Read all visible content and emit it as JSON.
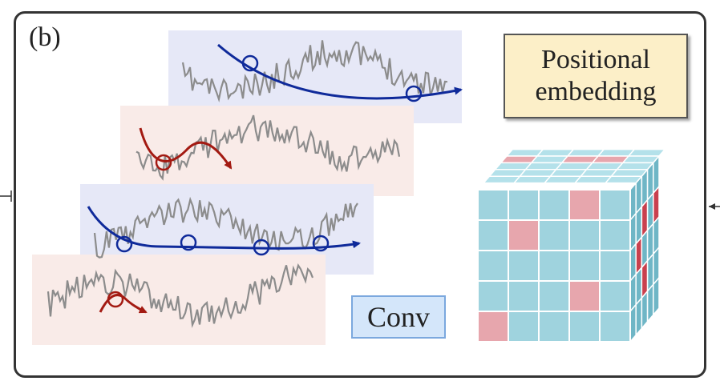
{
  "panel": {
    "label": "(b)"
  },
  "positional_embedding": {
    "line1": "Positional",
    "line2": "embedding"
  },
  "conv": {
    "label": "Conv"
  },
  "colors": {
    "blue_band": "#e6e8f7",
    "red_band": "#f9ebe8",
    "signal": "#8c8c8c",
    "blue_arrow": "#0f2a9a",
    "red_arrow": "#a31a12",
    "cube_cell": "#9fd3de",
    "cube_highlight": "#e7a6ad",
    "cube_side": "#6fb6c6",
    "cube_side_highlight": "#c9404e"
  },
  "icons": [
    "left-arrow-icon",
    "right-arrow-icon"
  ]
}
